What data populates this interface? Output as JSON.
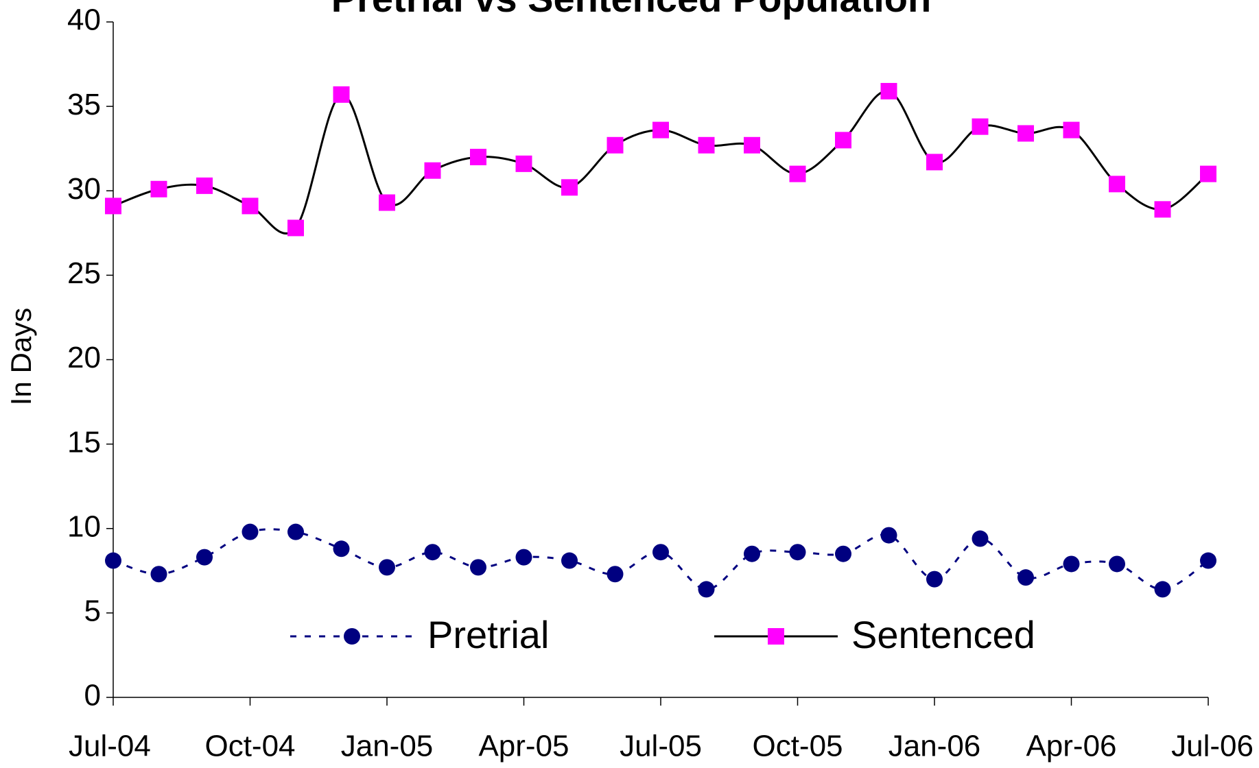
{
  "chart_data": {
    "type": "line",
    "title": "Pretrial vs Sentenced Population",
    "y_label": "In Days",
    "categories": [
      "Jul-04",
      null,
      null,
      "Oct-04",
      null,
      null,
      "Jan-05",
      null,
      null,
      "Apr-05",
      null,
      null,
      "Jul-05",
      null,
      null,
      "Oct-05",
      null,
      null,
      "Jan-06",
      null,
      null,
      "Apr-06",
      null,
      null,
      "Jul-06"
    ],
    "series": [
      {
        "name": "Pretrial",
        "color": "#000080",
        "line_color": "#000080",
        "marker": "circle",
        "line_style": "dotted",
        "values": [
          8.1,
          7.3,
          8.3,
          9.8,
          9.8,
          8.8,
          7.7,
          8.6,
          7.7,
          8.3,
          8.1,
          7.3,
          8.6,
          6.4,
          8.5,
          8.6,
          8.5,
          9.6,
          7.0,
          9.4,
          7.1,
          7.9,
          7.9,
          6.4,
          8.1
        ]
      },
      {
        "name": "Sentenced",
        "color": "#ff00ff",
        "line_color": "#000000",
        "marker": "square",
        "line_style": "solid",
        "values": [
          29.1,
          30.1,
          30.3,
          29.1,
          27.8,
          35.7,
          29.3,
          31.2,
          32.0,
          31.6,
          30.2,
          32.7,
          33.6,
          32.7,
          32.7,
          31.0,
          33.0,
          35.9,
          31.7,
          33.8,
          33.4,
          33.6,
          30.4,
          28.9,
          31.0
        ]
      }
    ],
    "ylim": [
      0,
      40
    ],
    "yticks": [
      0,
      5,
      10,
      15,
      20,
      25,
      30,
      35,
      40
    ],
    "grid": false,
    "legend": "bottom"
  }
}
